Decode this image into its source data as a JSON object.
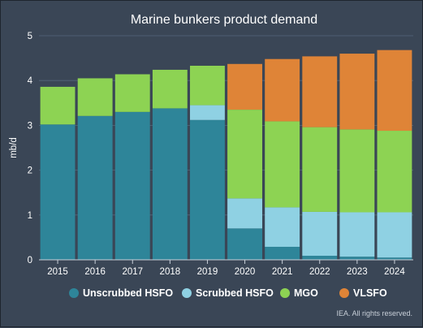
{
  "chart_data": {
    "type": "bar",
    "stacked": true,
    "title": "Marine bunkers product demand",
    "xlabel": "",
    "ylabel": "mb/d",
    "ylim": [
      0,
      5
    ],
    "yticks": [
      "0",
      "1",
      "2",
      "3",
      "4",
      "5"
    ],
    "categories": [
      "2015",
      "2016",
      "2017",
      "2018",
      "2019",
      "2020",
      "2021",
      "2022",
      "2023",
      "2024"
    ],
    "series": [
      {
        "name": "Unscrubbed HSFO",
        "color": "#2e8599",
        "values": [
          3.02,
          3.21,
          3.3,
          3.38,
          3.12,
          0.7,
          0.29,
          0.09,
          0.07,
          0.05
        ]
      },
      {
        "name": "Scrubbed HSFO",
        "color": "#8fd1e3",
        "values": [
          0,
          0,
          0,
          0,
          0.33,
          0.67,
          0.88,
          0.98,
          0.99,
          1.01
        ]
      },
      {
        "name": "MGO",
        "color": "#8dd353",
        "values": [
          0.84,
          0.84,
          0.84,
          0.86,
          0.88,
          1.98,
          1.92,
          1.89,
          1.85,
          1.82
        ]
      },
      {
        "name": "VLSFO",
        "color": "#df8437",
        "values": [
          0,
          0,
          0,
          0,
          0,
          1.02,
          1.39,
          1.58,
          1.69,
          1.8
        ]
      }
    ],
    "grid": true,
    "legend_position": "bottom"
  },
  "credit": "IEA. All rights reserved."
}
